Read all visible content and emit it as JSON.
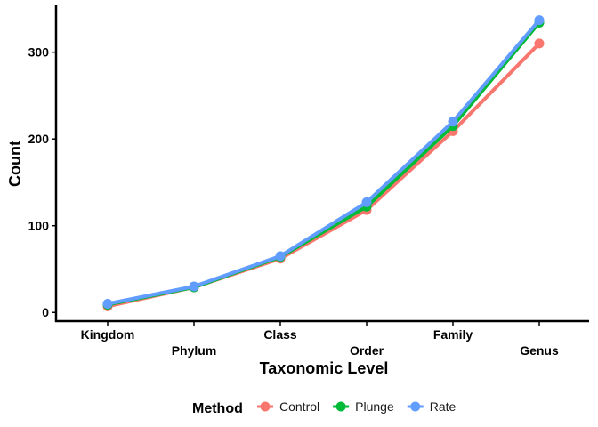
{
  "chart_data": {
    "type": "line",
    "title": "",
    "xlabel": "Taxonomic Level",
    "ylabel": "Count",
    "categories": [
      "Kingdom",
      "Phylum",
      "Class",
      "Order",
      "Family",
      "Genus"
    ],
    "ylim": [
      -10,
      354
    ],
    "yticks": [
      0,
      100,
      200,
      300
    ],
    "grid": false,
    "legend": {
      "title": "Method",
      "position": "bottom"
    },
    "series": [
      {
        "name": "Control",
        "color": "#F8766D",
        "values": [
          7,
          29,
          62,
          118,
          209,
          310
        ]
      },
      {
        "name": "Plunge",
        "color": "#00BA38",
        "values": [
          9,
          29,
          64,
          122,
          215,
          334
        ]
      },
      {
        "name": "Rate",
        "color": "#619CFF",
        "values": [
          10,
          30,
          65,
          127,
          220,
          337
        ]
      }
    ]
  }
}
